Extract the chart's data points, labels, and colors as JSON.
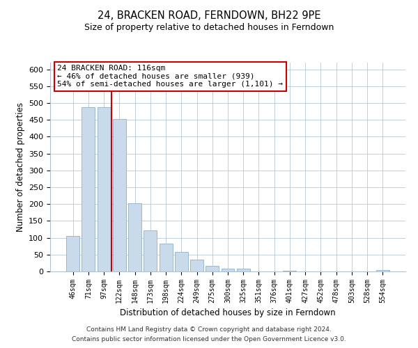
{
  "title": "24, BRACKEN ROAD, FERNDOWN, BH22 9PE",
  "subtitle": "Size of property relative to detached houses in Ferndown",
  "xlabel": "Distribution of detached houses by size in Ferndown",
  "ylabel": "Number of detached properties",
  "bar_labels": [
    "46sqm",
    "71sqm",
    "97sqm",
    "122sqm",
    "148sqm",
    "173sqm",
    "198sqm",
    "224sqm",
    "249sqm",
    "275sqm",
    "300sqm",
    "325sqm",
    "351sqm",
    "376sqm",
    "401sqm",
    "427sqm",
    "452sqm",
    "478sqm",
    "503sqm",
    "528sqm",
    "554sqm"
  ],
  "bar_heights": [
    105,
    487,
    487,
    452,
    202,
    122,
    83,
    57,
    35,
    17,
    9,
    9,
    0,
    0,
    3,
    0,
    0,
    0,
    0,
    0,
    5
  ],
  "bar_color": "#c9daea",
  "bar_edge_color": "#9ab8cf",
  "vline_x_idx": 2,
  "vline_color": "#cc0000",
  "ylim": [
    0,
    620
  ],
  "yticks": [
    0,
    50,
    100,
    150,
    200,
    250,
    300,
    350,
    400,
    450,
    500,
    550,
    600
  ],
  "annotation_line1": "24 BRACKEN ROAD: 116sqm",
  "annotation_line2": "← 46% of detached houses are smaller (939)",
  "annotation_line3": "54% of semi-detached houses are larger (1,101) →",
  "footnote1": "Contains HM Land Registry data © Crown copyright and database right 2024.",
  "footnote2": "Contains public sector information licensed under the Open Government Licence v3.0."
}
